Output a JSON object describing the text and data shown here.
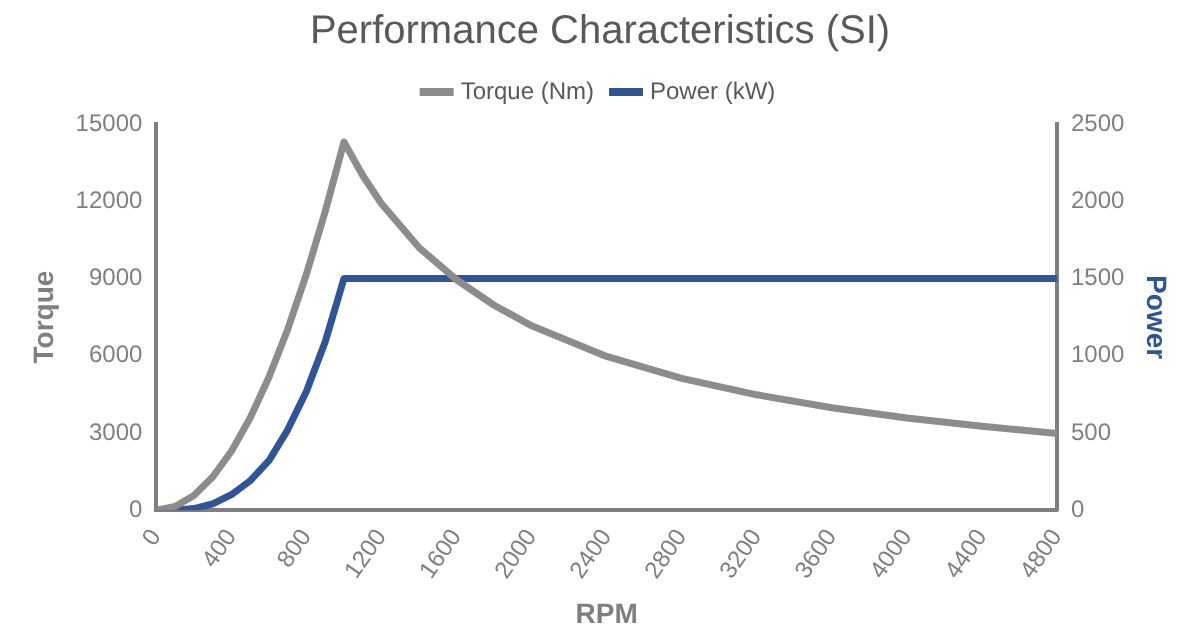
{
  "chart_data": {
    "type": "line",
    "title": "Performance Characteristics (SI)",
    "xlabel": "RPM",
    "ylabel": "Torque",
    "y2label": "Power",
    "x": [
      0,
      100,
      200,
      300,
      400,
      500,
      600,
      700,
      800,
      900,
      1000,
      1100,
      1200,
      1400,
      1600,
      1800,
      2000,
      2400,
      2800,
      3200,
      3600,
      4000,
      4400,
      4800
    ],
    "series": [
      {
        "name": "Torque (Nm)",
        "color": "#8c8c8c",
        "values": [
          0,
          140,
          570,
          1290,
          2290,
          3580,
          5160,
          7020,
          9170,
          11600,
          14300,
          13000,
          11900,
          10200,
          8950,
          7960,
          7160,
          5970,
          5120,
          4480,
          3980,
          3580,
          3260,
          2980
        ]
      },
      {
        "name": "Power (kW)",
        "color": "#2f5597",
        "axis": "y2",
        "values": [
          0,
          0,
          10,
          40,
          100,
          190,
          320,
          520,
          770,
          1090,
          1500,
          1500,
          1500,
          1500,
          1500,
          1500,
          1500,
          1500,
          1500,
          1500,
          1500,
          1500,
          1500,
          1500
        ]
      }
    ],
    "xlim": [
      0,
      4800
    ],
    "xticks": [
      0,
      400,
      800,
      1200,
      1600,
      2000,
      2400,
      2800,
      3200,
      3600,
      4000,
      4400,
      4800
    ],
    "ylim": [
      0,
      15000
    ],
    "yticks": [
      0,
      3000,
      6000,
      9000,
      12000,
      15000
    ],
    "y2lim": [
      0,
      2500
    ],
    "y2ticks": [
      0,
      500,
      1000,
      1500,
      2000,
      2500
    ],
    "legend": "top",
    "grid": false,
    "marker": "none",
    "line_style": "solid"
  }
}
